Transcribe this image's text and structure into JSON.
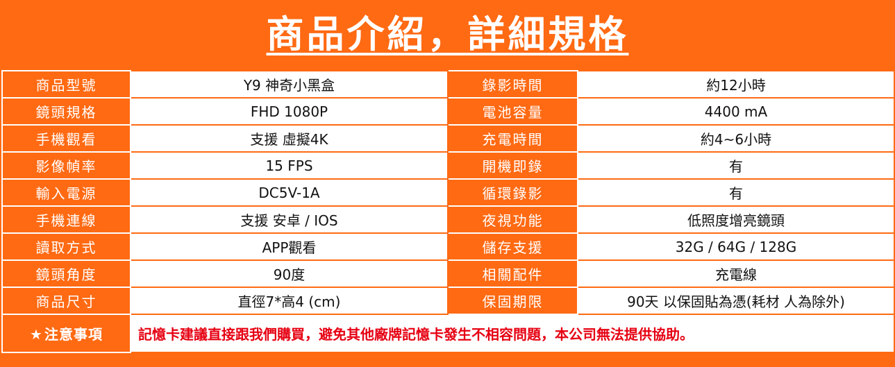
{
  "title": "商品介紹，詳細規格",
  "specs": [
    {
      "label1": "商品型號",
      "value1": "Y9 神奇小黑盒",
      "label2": "錄影時間",
      "value2": "約12小時"
    },
    {
      "label1": "鏡頭規格",
      "value1": "FHD 1080P",
      "label2": "電池容量",
      "value2": "4400 mA"
    },
    {
      "label1": "手機觀看",
      "value1": "支援 虛擬4K",
      "label2": "充電時間",
      "value2": "約4~6小時"
    },
    {
      "label1": "影像幀率",
      "value1": "15 FPS",
      "label2": "開機即錄",
      "value2": "有"
    },
    {
      "label1": "輸入電源",
      "value1": "DC5V-1A",
      "label2": "循環錄影",
      "value2": "有"
    },
    {
      "label1": "手機連線",
      "value1": "支援 安卓 / IOS",
      "label2": "夜視功能",
      "value2": "低照度增亮鏡頭"
    },
    {
      "label1": "讀取方式",
      "value1": "APP觀看",
      "label2": "儲存支援",
      "value2": "32G / 64G / 128G"
    },
    {
      "label1": "鏡頭角度",
      "value1": "90度",
      "label2": "相關配件",
      "value2": "充電線"
    },
    {
      "label1": "商品尺寸",
      "value1": "直徑7*高4 (cm)",
      "label2": "保固期限",
      "value2": "90天 以保固貼為憑(耗材 人為除外)"
    }
  ],
  "notice": {
    "star": "★",
    "label": "注意事項",
    "text": "記憶卡建議直接跟我們購買，避免其他廠牌記憶卡發生不相容問題，本公司無法提供協助。"
  },
  "colors": {
    "brand_orange": "#ff6a13",
    "notice_red": "#e60012",
    "text_dark": "#111111"
  }
}
